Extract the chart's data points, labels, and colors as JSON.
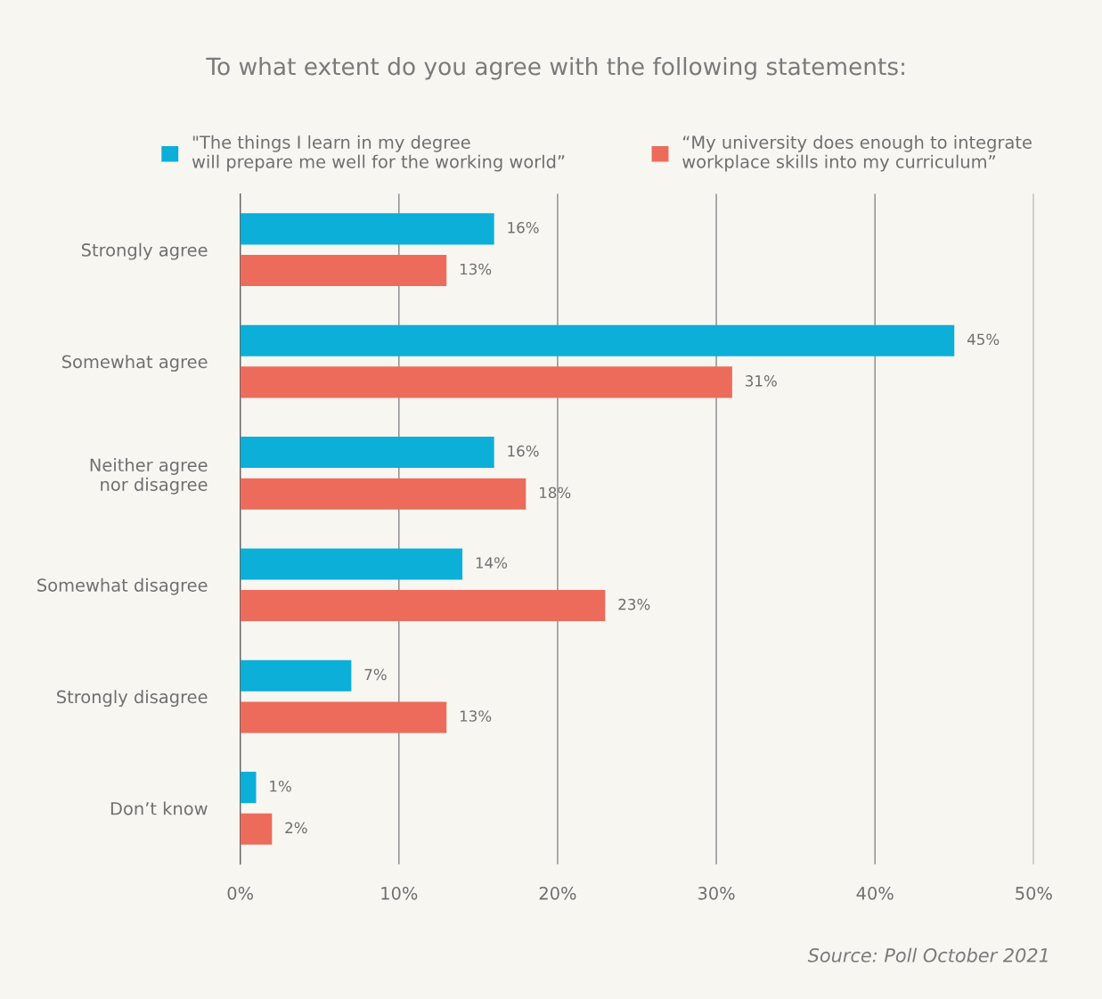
{
  "chart_data": {
    "type": "bar",
    "orientation": "horizontal",
    "title": "To what extent do you agree with the following statements:",
    "categories": [
      "Strongly agree",
      "Somewhat agree",
      "Neither agree\nnor disagree",
      "Somewhat disagree",
      "Strongly disagree",
      "Don’t know"
    ],
    "series": [
      {
        "name": "\"The things I learn in my degree\nwill prepare me well for the working world”",
        "color": "#0bafd8",
        "values": [
          16,
          45,
          16,
          14,
          7,
          1
        ],
        "value_labels": [
          "16%",
          "45%",
          "16%",
          "14%",
          "7%",
          "1%"
        ]
      },
      {
        "name": "“My university does enough to integrate\nworkplace skills into my curriculum”",
        "color": "#ec6b5b",
        "values": [
          13,
          31,
          18,
          23,
          13,
          2
        ],
        "value_labels": [
          "13%",
          "31%",
          "18%",
          "23%",
          "13%",
          "2%"
        ]
      }
    ],
    "xlim": [
      0,
      50
    ],
    "xticks": [
      {
        "value": 0,
        "label": "0%"
      },
      {
        "value": 10,
        "label": "10%"
      },
      {
        "value": 20,
        "label": "20%"
      },
      {
        "value": 30,
        "label": "30%"
      },
      {
        "value": 40,
        "label": "40%"
      },
      {
        "value": 50,
        "label": "50%"
      }
    ],
    "grid": "x",
    "legend": "top",
    "annotations": [
      "Source: Poll October 2021"
    ]
  }
}
